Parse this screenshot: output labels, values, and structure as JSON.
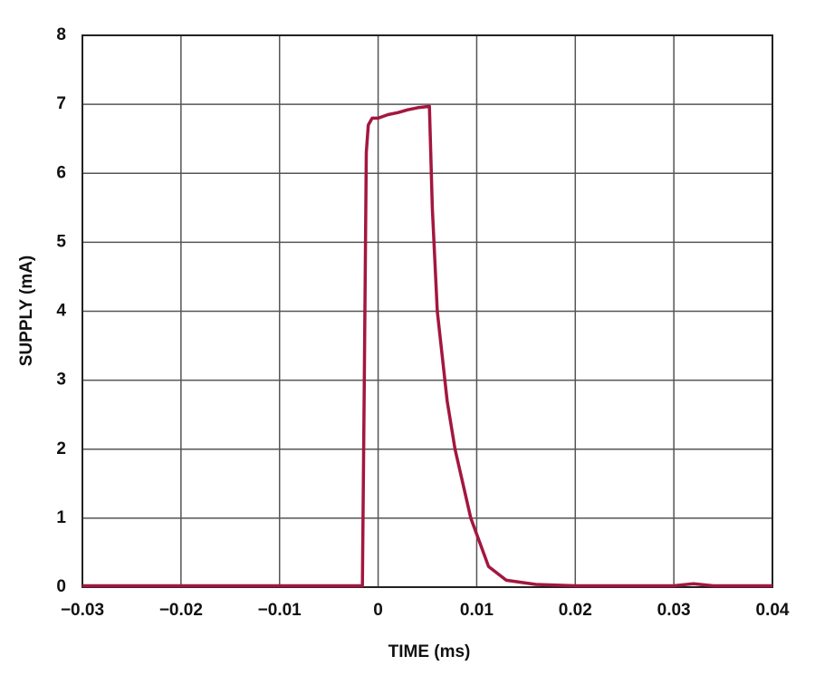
{
  "chart_data": {
    "type": "line",
    "xlabel": "TIME (ms)",
    "ylabel": "SUPPLY (mA)",
    "xlim": [
      -0.03,
      0.04
    ],
    "ylim": [
      0,
      8
    ],
    "xticks": [
      {
        "value": -0.03,
        "label": "−0.03"
      },
      {
        "value": -0.02,
        "label": "−0.02"
      },
      {
        "value": -0.01,
        "label": "−0.01"
      },
      0,
      0.01,
      0.02,
      0.03,
      0.04
    ],
    "yticks": [
      0,
      1,
      2,
      3,
      4,
      5,
      6,
      7,
      8
    ],
    "grid": true,
    "series": [
      {
        "color": "#a3173f",
        "x": [
          -0.03,
          -0.02,
          -0.01,
          -0.0016,
          -0.0014,
          -0.0012,
          -0.001,
          -0.0006,
          0,
          0.001,
          0.002,
          0.003,
          0.004,
          0.0052,
          0.0055,
          0.006,
          0.007,
          0.0078,
          0.0094,
          0.0112,
          0.013,
          0.016,
          0.02,
          0.03,
          0.032,
          0.034,
          0.04
        ],
        "values": [
          0.02,
          0.02,
          0.02,
          0.02,
          3,
          6.3,
          6.7,
          6.8,
          6.8,
          6.85,
          6.88,
          6.92,
          6.95,
          6.97,
          5.5,
          4.0,
          2.7,
          2.0,
          1.0,
          0.3,
          0.1,
          0.04,
          0.02,
          0.02,
          0.05,
          0.02,
          0.02
        ]
      }
    ]
  }
}
